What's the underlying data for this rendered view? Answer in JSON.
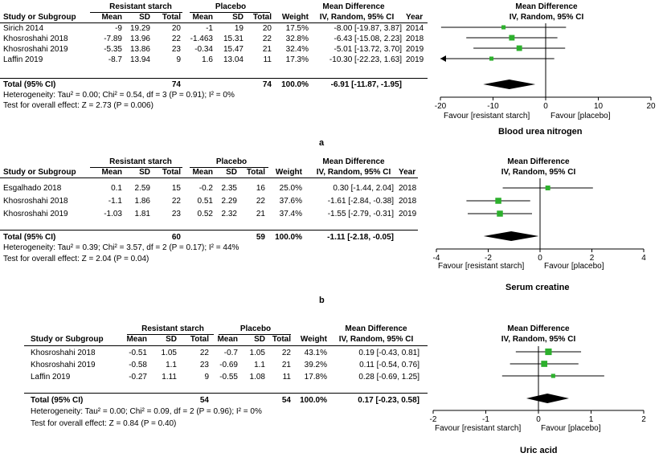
{
  "columns": {
    "study": "Study or Subgroup",
    "mean": "Mean",
    "sd": "SD",
    "total": "Total",
    "weight": "Weight",
    "year": "Year",
    "group1": "Resistant starch",
    "group2": "Placebo",
    "md": "Mean Difference",
    "md_sub": "IV, Random, 95% CI"
  },
  "panels": [
    {
      "label": "a",
      "outcome": "Blood urea nitrogen",
      "rows": [
        {
          "study": "Sirich 2014",
          "m1": "-9",
          "sd1": "19.29",
          "n1": "20",
          "m2": "-1",
          "sd2": "19",
          "n2": "20",
          "weight": "17.5%",
          "ci": "-8.00 [-19.87, 3.87]",
          "year": "2014"
        },
        {
          "study": "Khosroshahi 2018",
          "m1": "-7.89",
          "sd1": "13.96",
          "n1": "22",
          "m2": "-1.463",
          "sd2": "15.31",
          "n2": "22",
          "weight": "32.8%",
          "ci": "-6.43 [-15.08, 2.23]",
          "year": "2018"
        },
        {
          "study": "Khosroshahi 2019",
          "m1": "-5.35",
          "sd1": "13.86",
          "n1": "23",
          "m2": "-0.34",
          "sd2": "15.47",
          "n2": "21",
          "weight": "32.4%",
          "ci": "-5.01 [-13.72, 3.70]",
          "year": "2019"
        },
        {
          "study": "Laffin 2019",
          "m1": "-8.7",
          "sd1": "13.94",
          "n1": "9",
          "m2": "1.6",
          "sd2": "13.04",
          "n2": "11",
          "weight": "17.3%",
          "ci": "-10.30 [-22.23, 1.63]",
          "year": "2019"
        }
      ],
      "total": {
        "label": "Total (95% CI)",
        "n1": "74",
        "n2": "74",
        "weight": "100.0%",
        "ci": "-6.91 [-11.87, -1.95]"
      },
      "heterogeneity": "Heterogeneity: Tau² = 0.00; Chi² = 0.54, df = 3 (P = 0.91); I² = 0%",
      "overall": "Test for overall effect: Z = 2.73 (P = 0.006)",
      "favour_left": "Favour [resistant starch]",
      "favour_right": "Favour [placebo]"
    },
    {
      "label": "b",
      "outcome": "Serum creatine",
      "rows": [
        {
          "study": "Esgalhado 2018",
          "m1": "0.1",
          "sd1": "2.59",
          "n1": "15",
          "m2": "-0.2",
          "sd2": "2.35",
          "n2": "16",
          "weight": "25.0%",
          "ci": "0.30 [-1.44, 2.04]",
          "year": "2018"
        },
        {
          "study": "Khosroshahi 2018",
          "m1": "-1.1",
          "sd1": "1.86",
          "n1": "22",
          "m2": "0.51",
          "sd2": "2.29",
          "n2": "22",
          "weight": "37.6%",
          "ci": "-1.61 [-2.84, -0.38]",
          "year": "2018"
        },
        {
          "study": "Khosroshahi 2019",
          "m1": "-1.03",
          "sd1": "1.81",
          "n1": "23",
          "m2": "0.52",
          "sd2": "2.32",
          "n2": "21",
          "weight": "37.4%",
          "ci": "-1.55 [-2.79, -0.31]",
          "year": "2019"
        }
      ],
      "total": {
        "label": "Total (95% CI)",
        "n1": "60",
        "n2": "59",
        "weight": "100.0%",
        "ci": "-1.11 [-2.18, -0.05]"
      },
      "heterogeneity": "Heterogeneity: Tau² = 0.39; Chi² = 3.57, df = 2 (P = 0.17); I² = 44%",
      "overall": "Test for overall effect: Z = 2.04 (P = 0.04)",
      "favour_left": "Favour [resistant starch]",
      "favour_right": "Favour [placebo]"
    },
    {
      "label": "",
      "outcome": "Uric acid",
      "rows": [
        {
          "study": "Khosroshahi 2018",
          "m1": "-0.51",
          "sd1": "1.05",
          "n1": "22",
          "m2": "-0.7",
          "sd2": "1.05",
          "n2": "22",
          "weight": "43.1%",
          "ci": "0.19 [-0.43, 0.81]",
          "year": ""
        },
        {
          "study": "Khosroshahi 2019",
          "m1": "-0.58",
          "sd1": "1.1",
          "n1": "23",
          "m2": "-0.69",
          "sd2": "1.1",
          "n2": "21",
          "weight": "39.2%",
          "ci": "0.11 [-0.54, 0.76]",
          "year": ""
        },
        {
          "study": "Laffin 2019",
          "m1": "-0.27",
          "sd1": "1.11",
          "n1": "9",
          "m2": "-0.55",
          "sd2": "1.08",
          "n2": "11",
          "weight": "17.8%",
          "ci": "0.28 [-0.69, 1.25]",
          "year": ""
        }
      ],
      "total": {
        "label": "Total (95% CI)",
        "n1": "54",
        "n2": "54",
        "weight": "100.0%",
        "ci": "0.17 [-0.23, 0.58]"
      },
      "heterogeneity": "Heterogeneity: Tau² = 0.00; Chi² = 0.09, df = 2 (P = 0.96); I² = 0%",
      "overall": "Test for overall effect: Z = 0.84 (P = 0.40)",
      "favour_left": "Favour [resistant starch]",
      "favour_right": "Favour [placebo]"
    }
  ],
  "chart_data": [
    {
      "type": "forest",
      "title": "Blood urea nitrogen",
      "xlabel": "Mean Difference, IV, Random, 95% CI",
      "xlim": [
        -20,
        20
      ],
      "ticks": [
        -20,
        -10,
        0,
        10,
        20
      ],
      "series": [
        {
          "name": "Sirich 2014",
          "estimate": -8.0,
          "lower": -19.87,
          "upper": 3.87,
          "weight": 17.5
        },
        {
          "name": "Khosroshahi 2018",
          "estimate": -6.43,
          "lower": -15.08,
          "upper": 2.23,
          "weight": 32.8
        },
        {
          "name": "Khosroshahi 2019",
          "estimate": -5.01,
          "lower": -13.72,
          "upper": 3.7,
          "weight": 32.4
        },
        {
          "name": "Laffin 2019",
          "estimate": -10.3,
          "lower": -22.23,
          "upper": 1.63,
          "weight": 17.3
        }
      ],
      "pooled": {
        "estimate": -6.91,
        "lower": -11.87,
        "upper": -1.95
      }
    },
    {
      "type": "forest",
      "title": "Serum creatine",
      "xlabel": "Mean Difference, IV, Random, 95% CI",
      "xlim": [
        -4,
        4
      ],
      "ticks": [
        -4,
        -2,
        0,
        2,
        4
      ],
      "series": [
        {
          "name": "Esgalhado 2018",
          "estimate": 0.3,
          "lower": -1.44,
          "upper": 2.04,
          "weight": 25.0
        },
        {
          "name": "Khosroshahi 2018",
          "estimate": -1.61,
          "lower": -2.84,
          "upper": -0.38,
          "weight": 37.6
        },
        {
          "name": "Khosroshahi 2019",
          "estimate": -1.55,
          "lower": -2.79,
          "upper": -0.31,
          "weight": 37.4
        }
      ],
      "pooled": {
        "estimate": -1.11,
        "lower": -2.18,
        "upper": -0.05
      }
    },
    {
      "type": "forest",
      "title": "Uric acid",
      "xlabel": "Mean Difference, IV, Random, 95% CI",
      "xlim": [
        -2,
        2
      ],
      "ticks": [
        -2,
        -1,
        0,
        1,
        2
      ],
      "series": [
        {
          "name": "Khosroshahi 2018",
          "estimate": 0.19,
          "lower": -0.43,
          "upper": 0.81,
          "weight": 43.1
        },
        {
          "name": "Khosroshahi 2019",
          "estimate": 0.11,
          "lower": -0.54,
          "upper": 0.76,
          "weight": 39.2
        },
        {
          "name": "Laffin 2019",
          "estimate": 0.28,
          "lower": -0.69,
          "upper": 1.25,
          "weight": 17.8
        }
      ],
      "pooled": {
        "estimate": 0.17,
        "lower": -0.23,
        "upper": 0.58
      }
    }
  ]
}
